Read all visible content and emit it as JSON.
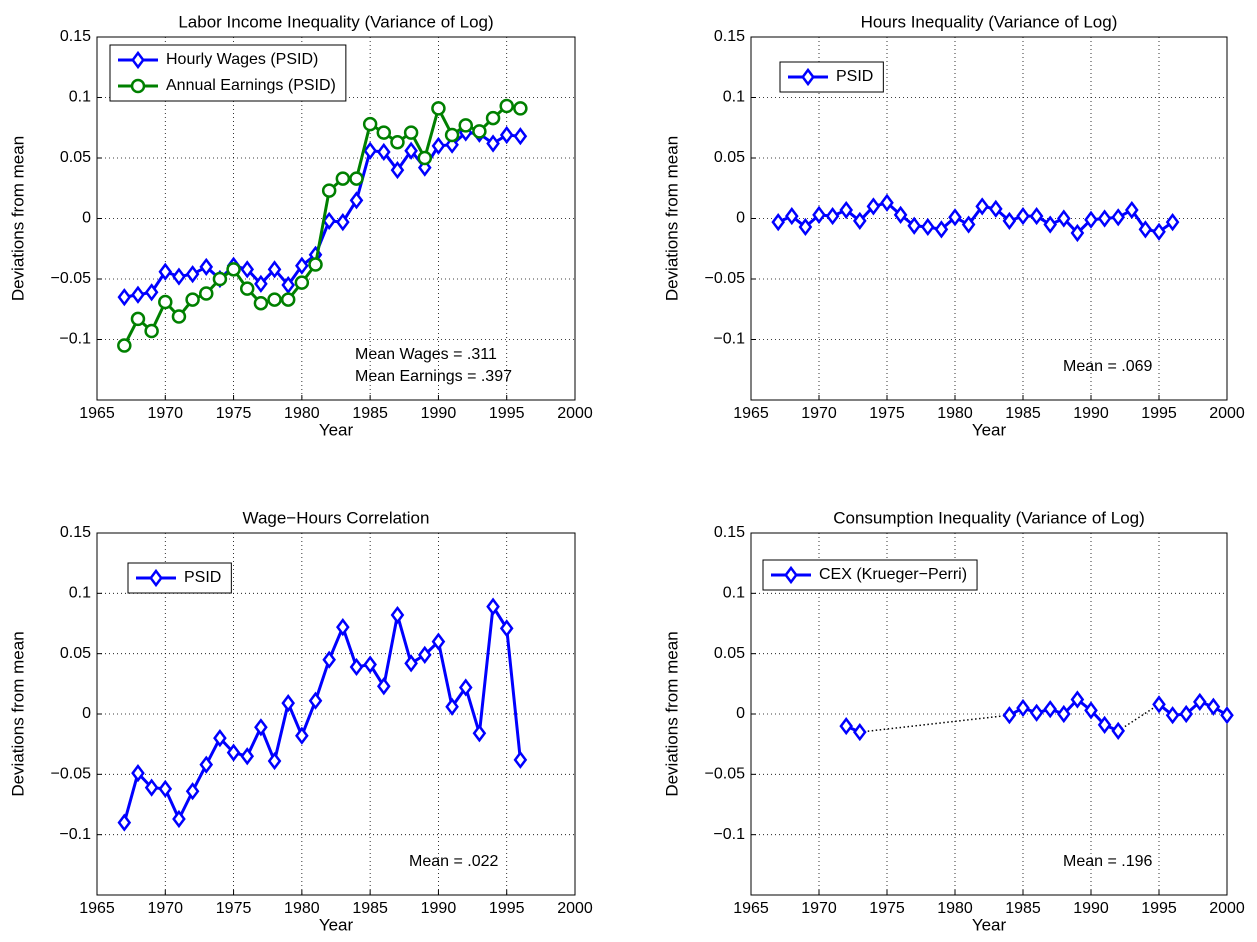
{
  "chart_data": [
    {
      "type": "line",
      "title": "Labor Income Inequality (Variance of Log)",
      "xlabel": "Year",
      "ylabel": "Deviations from mean",
      "x": [
        1967,
        1968,
        1969,
        1970,
        1971,
        1972,
        1973,
        1974,
        1975,
        1976,
        1977,
        1978,
        1979,
        1980,
        1981,
        1982,
        1983,
        1984,
        1985,
        1986,
        1987,
        1988,
        1989,
        1990,
        1991,
        1992,
        1993,
        1994,
        1995,
        1996
      ],
      "series": [
        {
          "name": "Hourly Wages (PSID)",
          "color": "#0000ff",
          "marker": "diamond",
          "values": [
            -0.065,
            -0.063,
            -0.061,
            -0.044,
            -0.048,
            -0.046,
            -0.04,
            -0.05,
            -0.039,
            -0.042,
            -0.054,
            -0.042,
            -0.055,
            -0.039,
            -0.03,
            -0.002,
            -0.003,
            0.015,
            0.056,
            0.055,
            0.04,
            0.056,
            0.042,
            0.06,
            0.061,
            0.071,
            0.07,
            0.062,
            0.069,
            0.068
          ]
        },
        {
          "name": "Annual Earnings (PSID)",
          "color": "#008000",
          "marker": "circle",
          "values": [
            -0.105,
            -0.083,
            -0.093,
            -0.069,
            -0.081,
            -0.067,
            -0.062,
            -0.05,
            -0.042,
            -0.058,
            -0.07,
            -0.067,
            -0.067,
            -0.053,
            -0.038,
            0.023,
            0.033,
            0.033,
            0.078,
            0.071,
            0.063,
            0.071,
            0.05,
            0.091,
            0.069,
            0.077,
            0.072,
            0.083,
            0.093,
            0.091
          ]
        }
      ],
      "annotations": [
        "Mean Wages = .311",
        "Mean Earnings = .397"
      ],
      "xlim": [
        1965,
        2000
      ],
      "xticks": [
        1965,
        1970,
        1975,
        1980,
        1985,
        1990,
        1995,
        2000
      ],
      "ylim": [
        -0.15,
        0.15
      ],
      "yticks": [
        {
          "value": -0.1,
          "label": "−0.1"
        },
        {
          "value": -0.05,
          "label": "−0.05"
        },
        0,
        0.05,
        0.1,
        0.15
      ],
      "grid": true,
      "legend": "upper left"
    },
    {
      "type": "line",
      "title": "Hours Inequality (Variance of Log)",
      "xlabel": "Year",
      "ylabel": "Deviations from mean",
      "x": [
        1967,
        1968,
        1969,
        1970,
        1971,
        1972,
        1973,
        1974,
        1975,
        1976,
        1977,
        1978,
        1979,
        1980,
        1981,
        1982,
        1983,
        1984,
        1985,
        1986,
        1987,
        1988,
        1989,
        1990,
        1991,
        1992,
        1993,
        1994,
        1995,
        1996
      ],
      "series": [
        {
          "name": "PSID",
          "color": "#0000ff",
          "marker": "diamond",
          "values": [
            -0.003,
            0.002,
            -0.007,
            0.003,
            0.002,
            0.007,
            -0.002,
            0.01,
            0.013,
            0.003,
            -0.006,
            -0.007,
            -0.009,
            0.001,
            -0.005,
            0.01,
            0.008,
            -0.002,
            0.002,
            0.002,
            -0.005,
            0.0,
            -0.012,
            -0.001,
            0.0,
            0.001,
            0.007,
            -0.009,
            -0.011,
            -0.003
          ]
        }
      ],
      "annotations": [
        "Mean = .069"
      ],
      "xlim": [
        1965,
        2000
      ],
      "xticks": [
        1965,
        1970,
        1975,
        1980,
        1985,
        1990,
        1995,
        2000
      ],
      "ylim": [
        -0.15,
        0.15
      ],
      "yticks": [
        {
          "value": -0.1,
          "label": "−0.1"
        },
        {
          "value": -0.05,
          "label": "−0.05"
        },
        0,
        0.05,
        0.1,
        0.15
      ],
      "grid": true,
      "legend": "upper left"
    },
    {
      "type": "line",
      "title": "Wage−Hours Correlation",
      "xlabel": "Year",
      "ylabel": "Deviations from mean",
      "x": [
        1967,
        1968,
        1969,
        1970,
        1971,
        1972,
        1973,
        1974,
        1975,
        1976,
        1977,
        1978,
        1979,
        1980,
        1981,
        1982,
        1983,
        1984,
        1985,
        1986,
        1987,
        1988,
        1989,
        1990,
        1991,
        1992,
        1993,
        1994,
        1995,
        1996
      ],
      "series": [
        {
          "name": "PSID",
          "color": "#0000ff",
          "marker": "diamond",
          "values": [
            -0.09,
            -0.049,
            -0.061,
            -0.062,
            -0.087,
            -0.064,
            -0.042,
            -0.02,
            -0.032,
            -0.035,
            -0.011,
            -0.039,
            0.009,
            -0.018,
            0.011,
            0.045,
            0.072,
            0.039,
            0.041,
            0.023,
            0.082,
            0.042,
            0.049,
            0.06,
            0.006,
            0.022,
            -0.016,
            0.089,
            0.071,
            -0.038
          ]
        }
      ],
      "annotations": [
        "Mean = .022"
      ],
      "xlim": [
        1965,
        2000
      ],
      "xticks": [
        1965,
        1970,
        1975,
        1980,
        1985,
        1990,
        1995,
        2000
      ],
      "ylim": [
        -0.15,
        0.15
      ],
      "yticks": [
        {
          "value": -0.1,
          "label": "−0.1"
        },
        {
          "value": -0.05,
          "label": "−0.05"
        },
        0,
        0.05,
        0.1,
        0.15
      ],
      "grid": true,
      "legend": "upper left"
    },
    {
      "type": "line",
      "title": "Consumption Inequality (Variance of Log)",
      "xlabel": "Year",
      "ylabel": "Deviations from mean",
      "x": [
        1972,
        1973,
        1984,
        1985,
        1986,
        1987,
        1988,
        1989,
        1990,
        1991,
        1992,
        1995,
        1996,
        1997,
        1998,
        1999,
        2000
      ],
      "series": [
        {
          "name": "CEX (Krueger−Perri)",
          "color": "#0000ff",
          "marker": "diamond",
          "values": [
            -0.01,
            -0.015,
            -0.001,
            0.005,
            0.001,
            0.004,
            0.0,
            0.012,
            0.003,
            -0.009,
            -0.014,
            0.008,
            -0.001,
            0.0,
            0.01,
            0.006,
            -0.001
          ]
        }
      ],
      "annotations": [
        "Mean = .196"
      ],
      "xlim": [
        1965,
        2000
      ],
      "xticks": [
        1965,
        1970,
        1975,
        1980,
        1985,
        1990,
        1995,
        2000
      ],
      "ylim": [
        -0.15,
        0.15
      ],
      "yticks": [
        {
          "value": -0.1,
          "label": "−0.1"
        },
        {
          "value": -0.05,
          "label": "−0.05"
        },
        0,
        0.05,
        0.1,
        0.15
      ],
      "grid": true,
      "legend": "upper left"
    }
  ]
}
